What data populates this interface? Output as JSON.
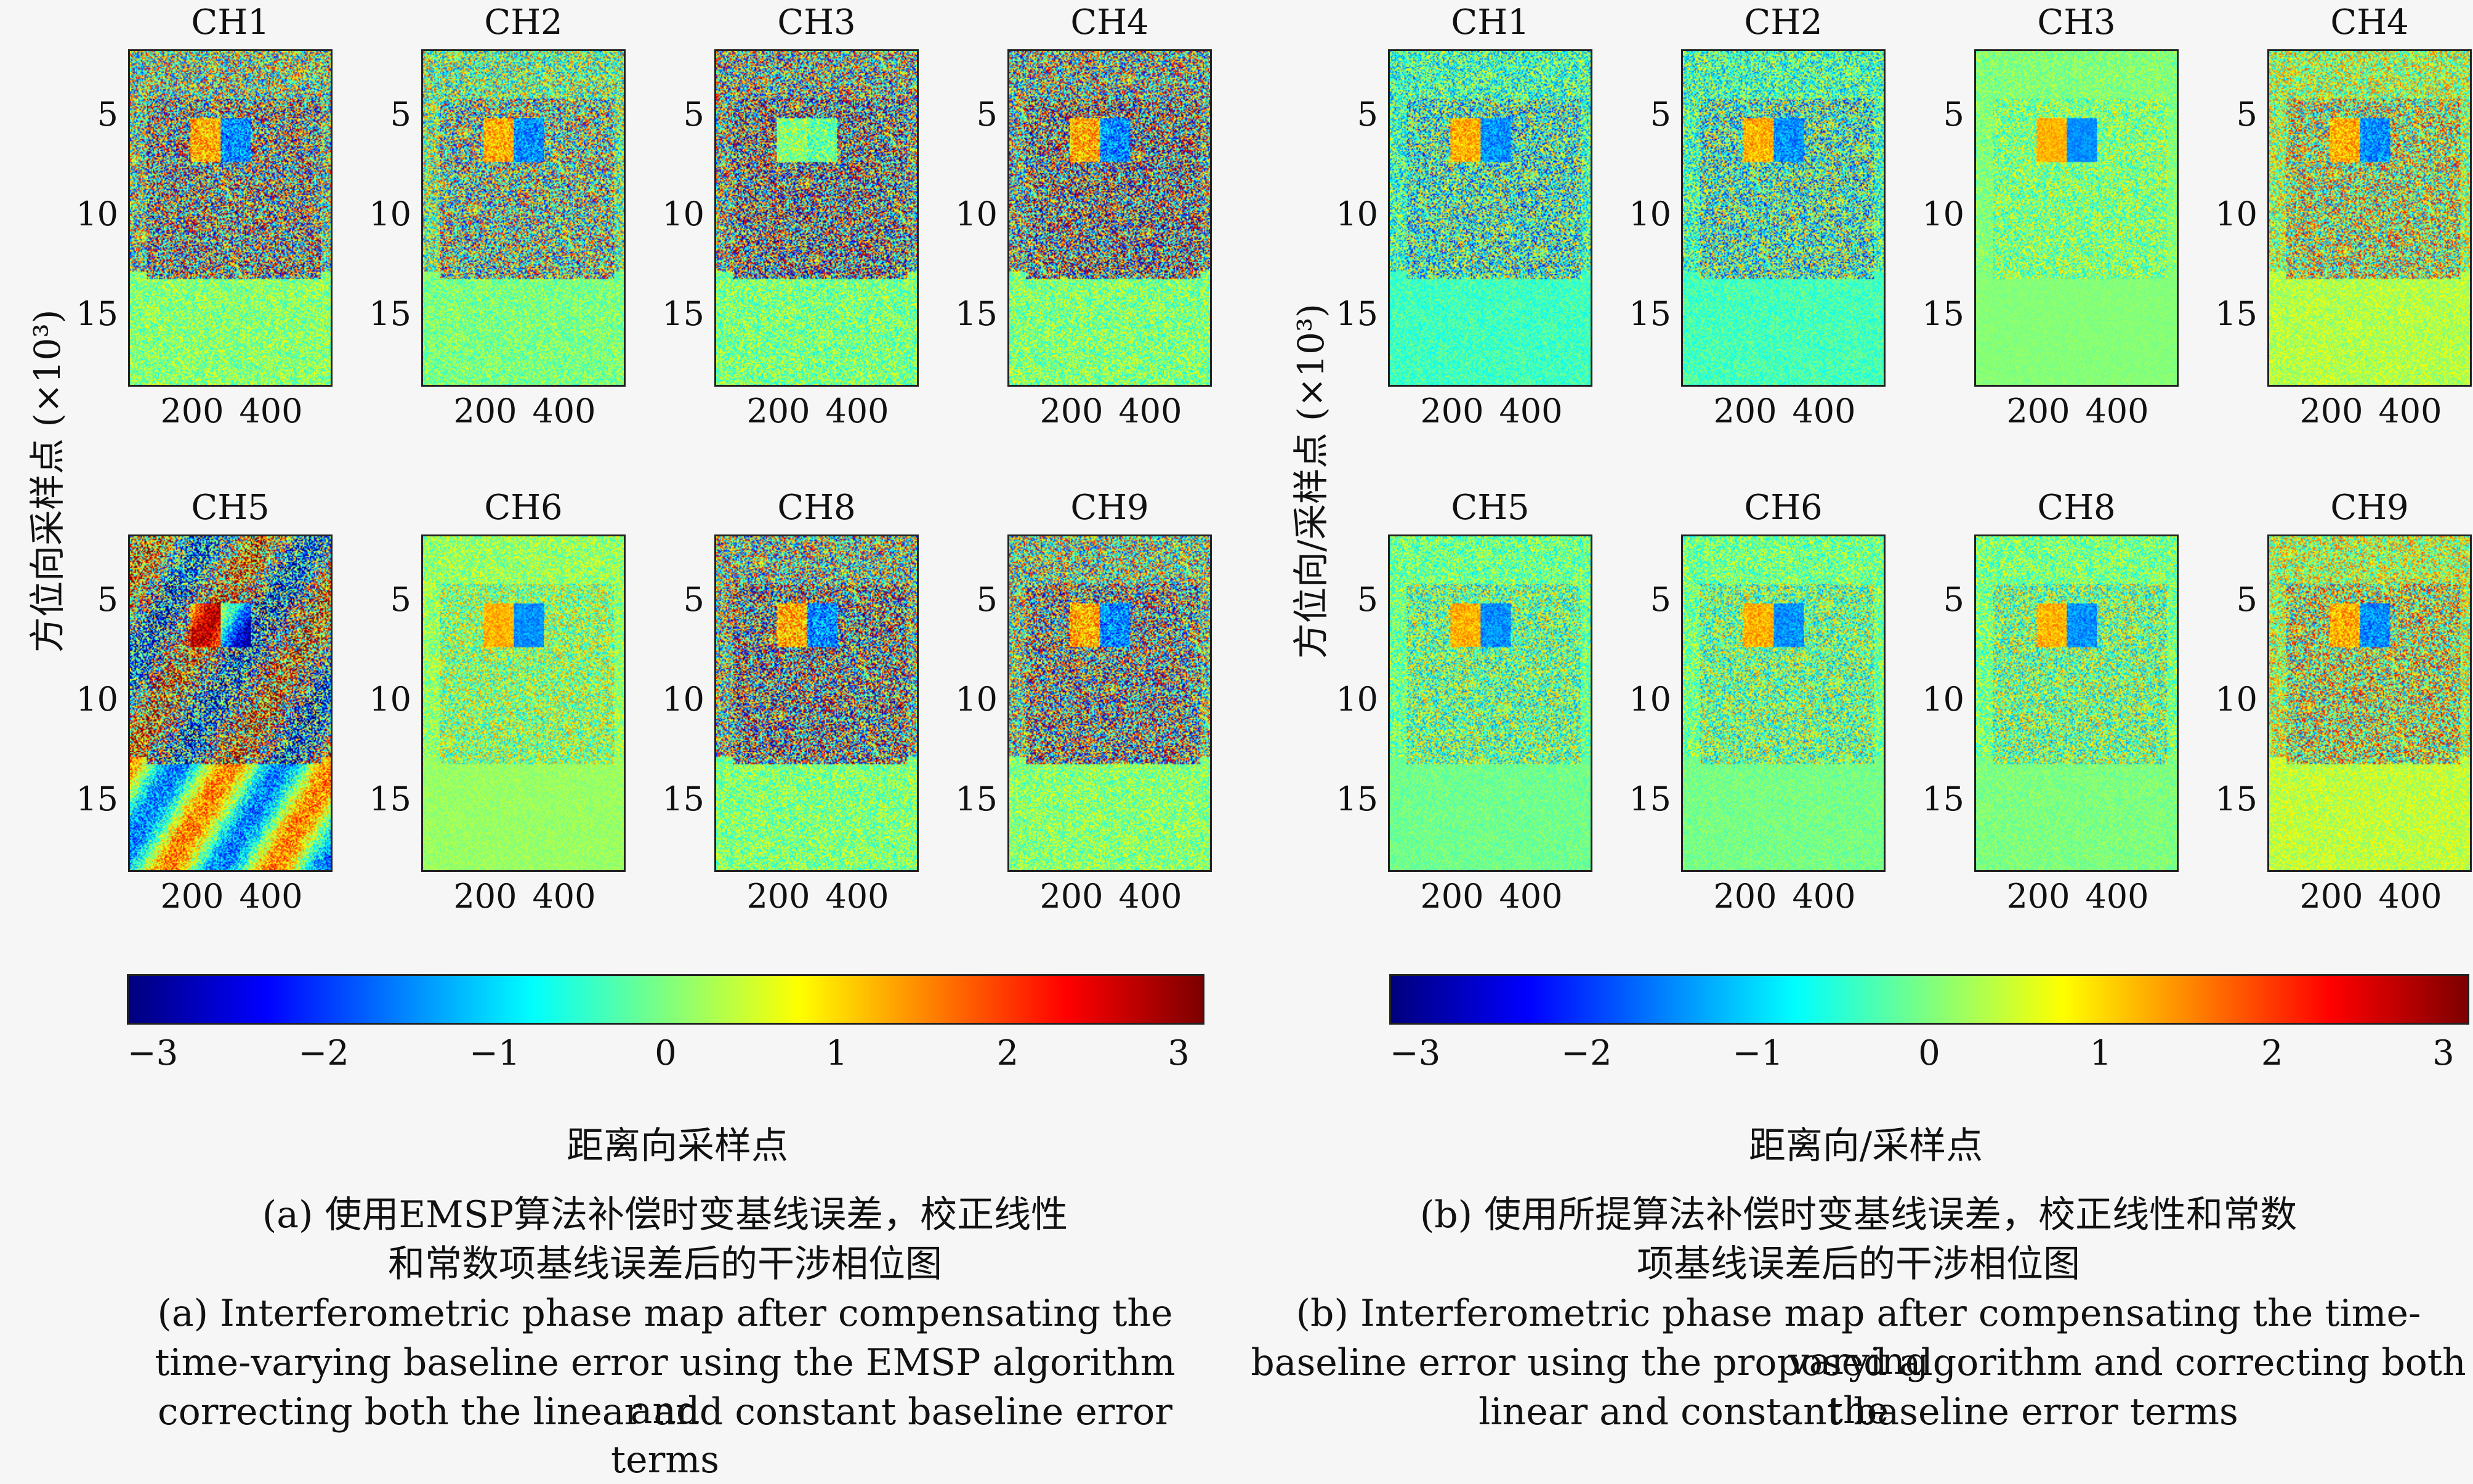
{
  "panels": [
    {
      "id": "a",
      "ylabel": "方位向采样点 (×10³)",
      "xlabel": "距离向采样点",
      "channels": [
        "CH1",
        "CH2",
        "CH3",
        "CH4",
        "CH5",
        "CH6",
        "CH8",
        "CH9"
      ],
      "yticks": [
        "5",
        "10",
        "15"
      ],
      "xticks": [
        "200",
        "400"
      ],
      "colorbar_ticks": [
        "−3",
        "−2",
        "−1",
        "0",
        "1",
        "2",
        "3"
      ],
      "caption_cn_1": "(a) 使用EMSP算法补偿时变基线误差，校正线性",
      "caption_cn_2": "和常数项基线误差后的干涉相位图",
      "caption_en_1": "(a) Interferometric phase map after compensating the",
      "caption_en_2": "time-varying baseline error using the EMSP algorithm and",
      "caption_en_3": "correcting both the linear and constant baseline error terms"
    },
    {
      "id": "b",
      "ylabel": "方位向/采样点 (×10³)",
      "xlabel": "距离向/采样点",
      "channels": [
        "CH1",
        "CH2",
        "CH3",
        "CH4",
        "CH5",
        "CH6",
        "CH8",
        "CH9"
      ],
      "yticks": [
        "5",
        "10",
        "15"
      ],
      "xticks": [
        "200",
        "400"
      ],
      "colorbar_ticks": [
        "−3",
        "−2",
        "−1",
        "0",
        "1",
        "2",
        "3"
      ],
      "caption_cn_1": "(b) 使用所提算法补偿时变基线误差，校正线性和常数",
      "caption_cn_2": "项基线误差后的干涉相位图",
      "caption_en_1": "(b) Interferometric phase map after compensating the time-varying",
      "caption_en_2": "baseline error using the proposed algorithm and correcting both the",
      "caption_en_3": "linear and constant baseline error terms"
    }
  ],
  "colormap": "jet",
  "colorbar_range": [
    -3,
    3
  ]
}
